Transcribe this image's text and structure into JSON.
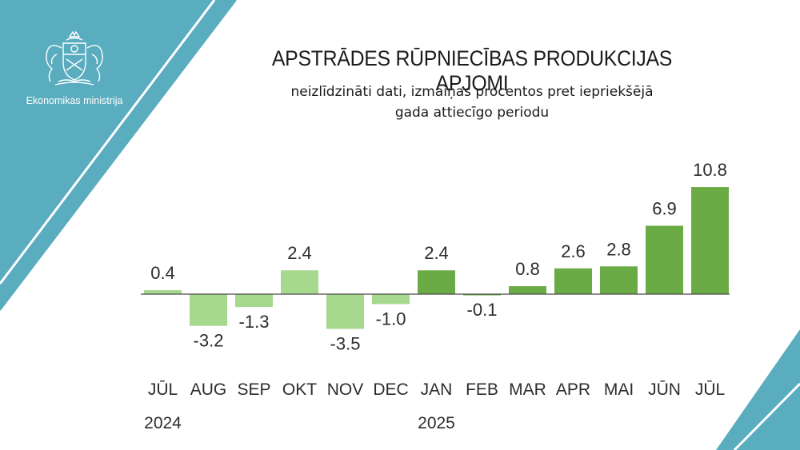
{
  "organization": {
    "name": "Ekonomikas ministrija",
    "logo_icon": "coat-of-arms-icon"
  },
  "colors": {
    "panel": "#5aacbf",
    "light_bar": "#a6d88e",
    "dark_bar": "#6aab45",
    "white": "#ffffff"
  },
  "chart_data": {
    "type": "bar",
    "title": "APSTRĀDES RŪPNIECĪBAS PRODUKCIJAS APJOMI",
    "subtitle_line1": "neizlīdzināti dati, izmaiņas procentos pret iepriekšējā",
    "subtitle_line2": "gada attiecīgo periodu",
    "categories": [
      "JŪL",
      "AUG",
      "SEP",
      "OKT",
      "NOV",
      "DEC",
      "JAN",
      "FEB",
      "MAR",
      "APR",
      "MAI",
      "JŪN",
      "JŪL"
    ],
    "year_labels": [
      "2024",
      "",
      "",
      "",
      "",
      "",
      "2025",
      "",
      "",
      "",
      "",
      "",
      ""
    ],
    "values": [
      0.4,
      -3.2,
      -1.3,
      2.4,
      -3.5,
      -1.0,
      2.4,
      -0.1,
      0.8,
      2.6,
      2.8,
      6.9,
      10.8
    ],
    "value_labels": [
      "0.4",
      "-3.2",
      "-1.3",
      "2.4",
      "-3.5",
      "-1.0",
      "2.4",
      "-0.1",
      "0.8",
      "2.6",
      "2.8",
      "6.9",
      "10.8"
    ],
    "series_year": [
      "2024",
      "2024",
      "2024",
      "2024",
      "2024",
      "2024",
      "2025",
      "2025",
      "2025",
      "2025",
      "2025",
      "2025",
      "2025"
    ],
    "legend": "none",
    "grid": false
  }
}
